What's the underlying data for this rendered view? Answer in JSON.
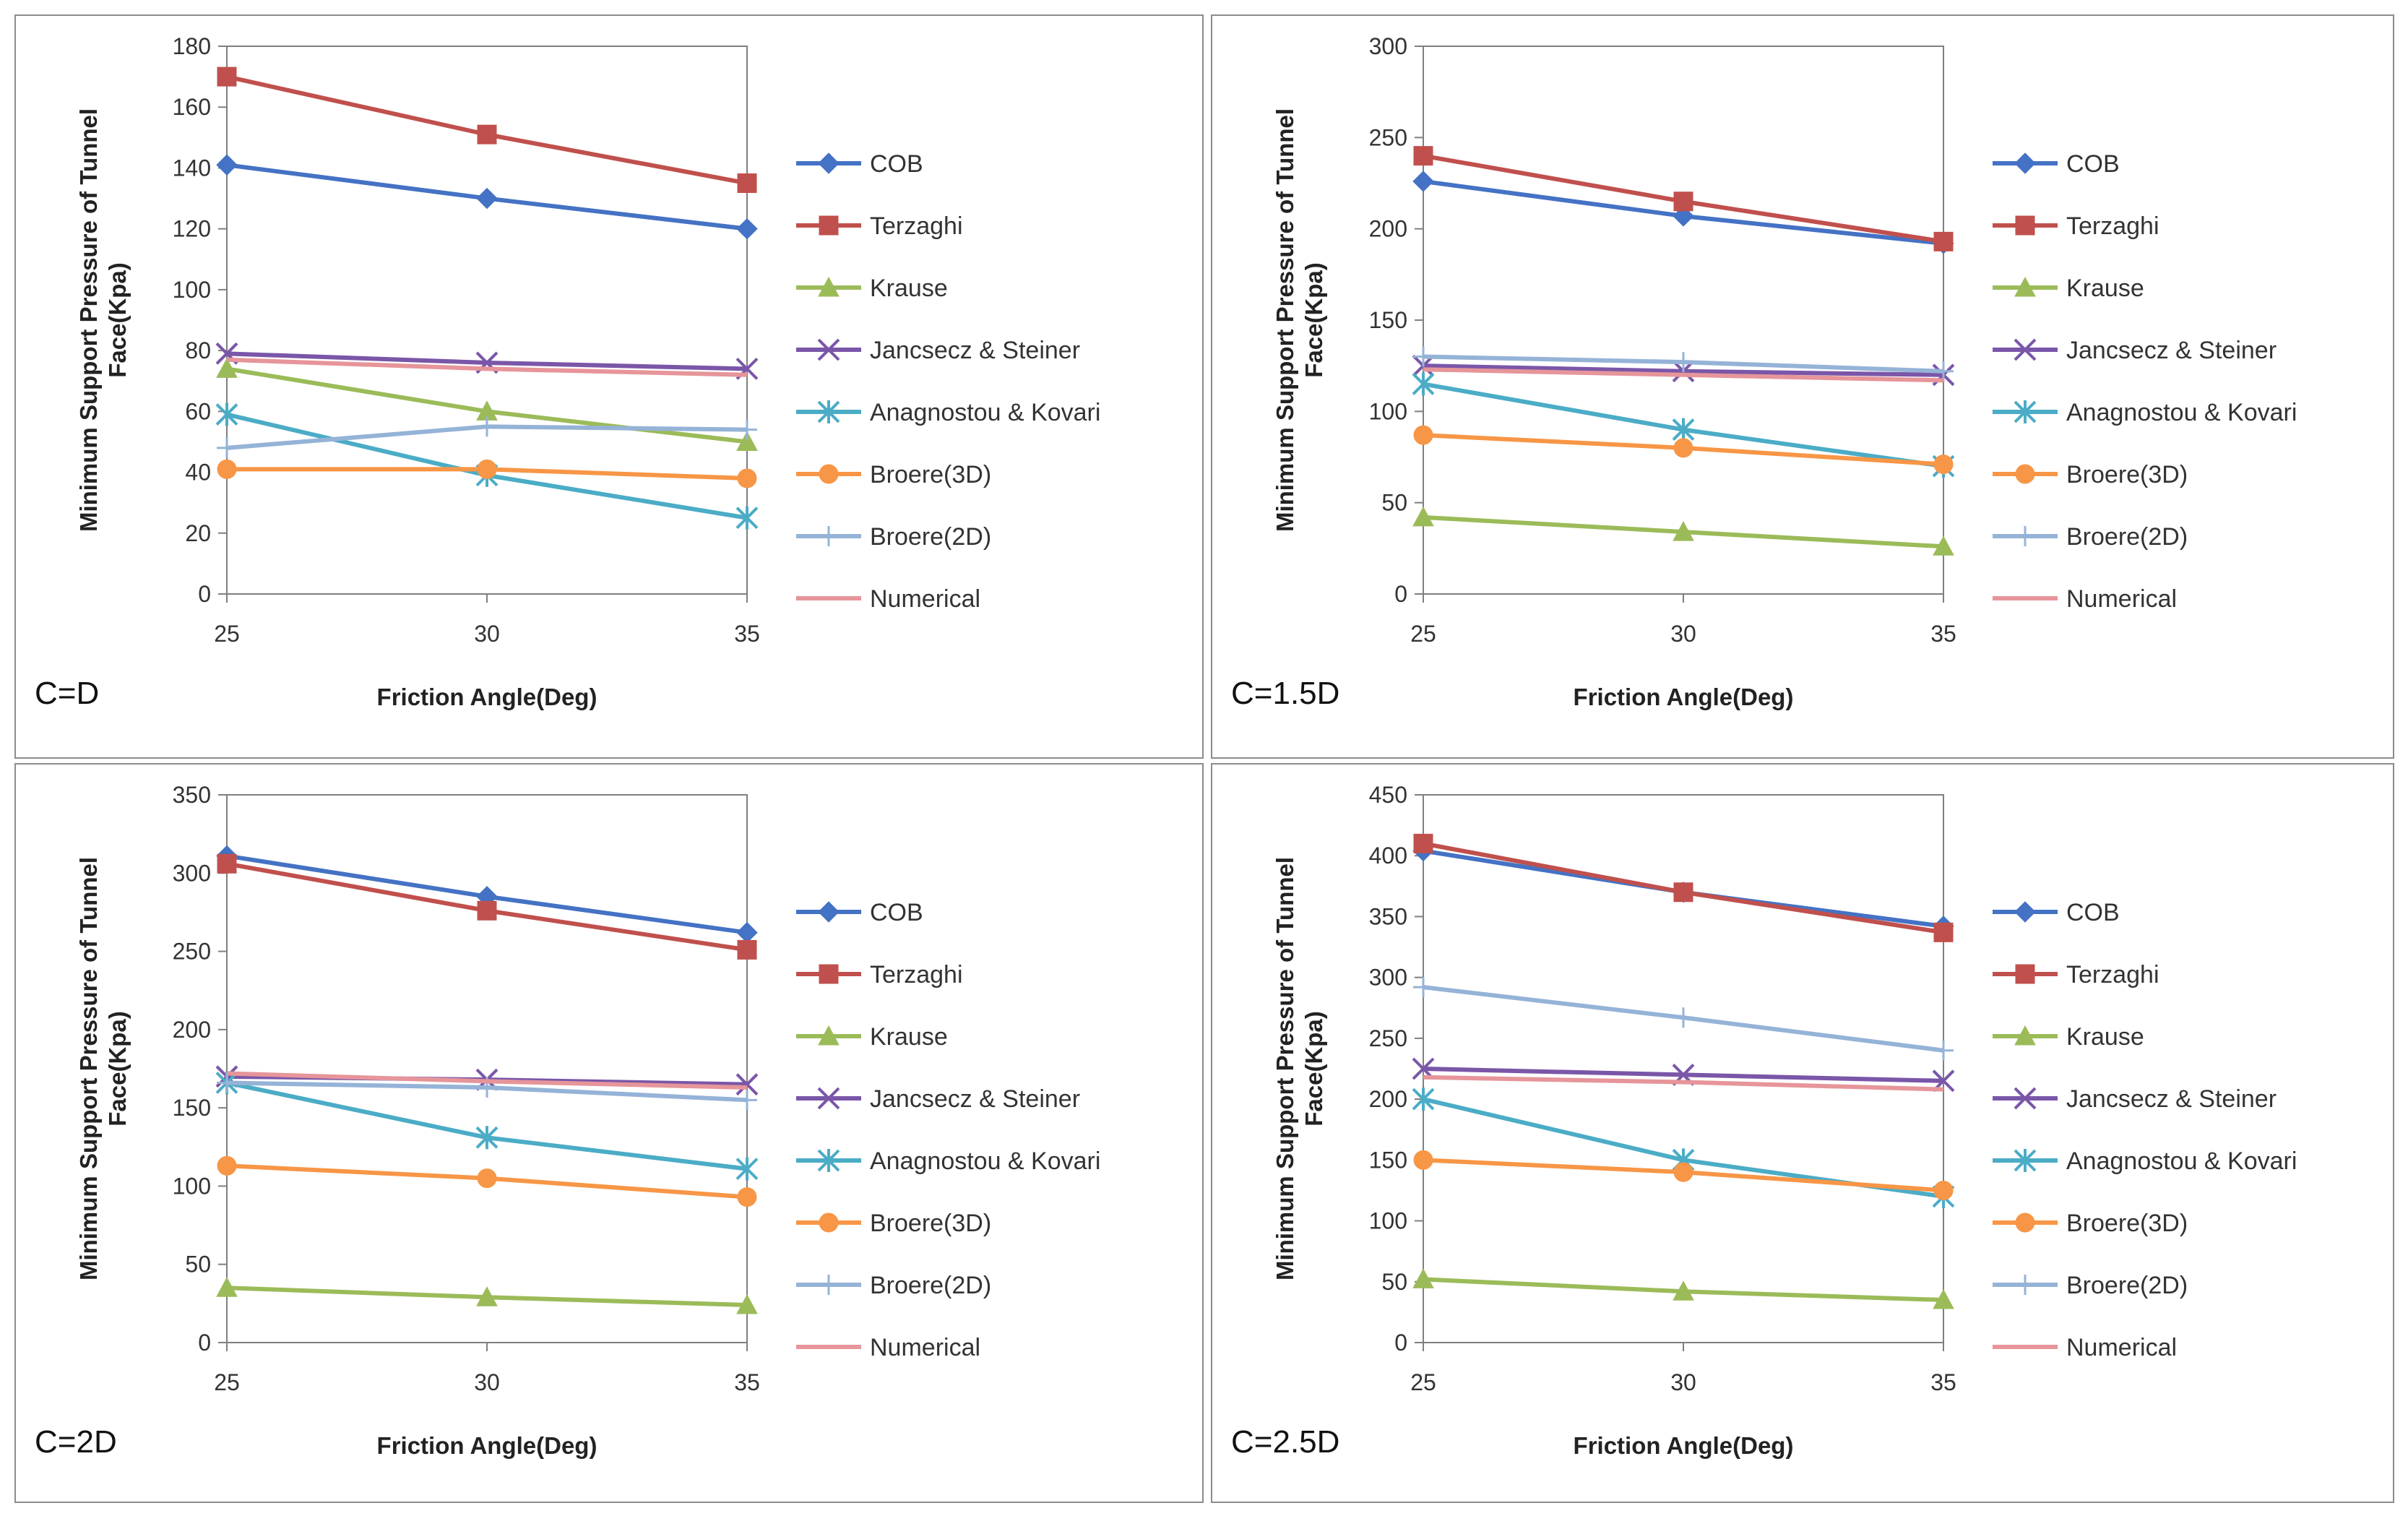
{
  "figure_title": "",
  "chart_data": [
    {
      "type": "line",
      "panel_label": "C=D",
      "xlabel": "Friction Angle(Deg)",
      "ylabel": "Minimum Support Pressure of Tunnel Face(Kpa)",
      "x": [
        25,
        30,
        35
      ],
      "xlim": [
        25,
        35
      ],
      "ylim": [
        0,
        180
      ],
      "yticks": [
        0,
        20,
        40,
        60,
        80,
        100,
        120,
        140,
        160,
        180
      ],
      "legend_position": "right",
      "series": [
        {
          "name": "COB",
          "color": "#4472c4",
          "marker": "diamond",
          "values": [
            141,
            130,
            120
          ]
        },
        {
          "name": "Terzaghi",
          "color": "#c0504d",
          "marker": "square",
          "values": [
            170,
            151,
            135
          ]
        },
        {
          "name": "Krause",
          "color": "#9bbb59",
          "marker": "triangle",
          "values": [
            74,
            60,
            50
          ]
        },
        {
          "name": "Jancsecz & Steiner",
          "color": "#7a56a8",
          "marker": "x",
          "values": [
            79,
            76,
            74
          ]
        },
        {
          "name": "Anagnostou & Kovari",
          "color": "#4bacc6",
          "marker": "star",
          "values": [
            59,
            39,
            25
          ]
        },
        {
          "name": "Broere(3D)",
          "color": "#f79646",
          "marker": "circle",
          "values": [
            41,
            41,
            38
          ]
        },
        {
          "name": "Broere(2D)",
          "color": "#95b3d7",
          "marker": "plus",
          "values": [
            48,
            55,
            54
          ]
        },
        {
          "name": "Numerical",
          "color": "#e6959a",
          "marker": "none",
          "values": [
            77,
            74,
            72
          ]
        }
      ]
    },
    {
      "type": "line",
      "panel_label": "C=1.5D",
      "xlabel": "Friction Angle(Deg)",
      "ylabel": "Minimum Support Pressure of Tunnel Face(Kpa)",
      "x": [
        25,
        30,
        35
      ],
      "xlim": [
        25,
        35
      ],
      "ylim": [
        0,
        300
      ],
      "yticks": [
        0,
        50,
        100,
        150,
        200,
        250,
        300
      ],
      "legend_position": "right",
      "series": [
        {
          "name": "COB",
          "color": "#4472c4",
          "marker": "diamond",
          "values": [
            226,
            207,
            192
          ]
        },
        {
          "name": "Terzaghi",
          "color": "#c0504d",
          "marker": "square",
          "values": [
            240,
            215,
            193
          ]
        },
        {
          "name": "Krause",
          "color": "#9bbb59",
          "marker": "triangle",
          "values": [
            42,
            34,
            26
          ]
        },
        {
          "name": "Jancsecz & Steiner",
          "color": "#7a56a8",
          "marker": "x",
          "values": [
            125,
            122,
            120
          ]
        },
        {
          "name": "Anagnostou & Kovari",
          "color": "#4bacc6",
          "marker": "star",
          "values": [
            115,
            90,
            70
          ]
        },
        {
          "name": "Broere(3D)",
          "color": "#f79646",
          "marker": "circle",
          "values": [
            87,
            80,
            71
          ]
        },
        {
          "name": "Broere(2D)",
          "color": "#95b3d7",
          "marker": "plus",
          "values": [
            130,
            127,
            122
          ]
        },
        {
          "name": "Numerical",
          "color": "#e6959a",
          "marker": "none",
          "values": [
            123,
            120,
            117
          ]
        }
      ]
    },
    {
      "type": "line",
      "panel_label": "C=2D",
      "xlabel": "Friction Angle(Deg)",
      "ylabel": "Minimum Support Pressure of Tunnel Face(Kpa)",
      "x": [
        25,
        30,
        35
      ],
      "xlim": [
        25,
        35
      ],
      "ylim": [
        0,
        350
      ],
      "yticks": [
        0,
        50,
        100,
        150,
        200,
        250,
        300,
        350
      ],
      "legend_position": "right",
      "series": [
        {
          "name": "COB",
          "color": "#4472c4",
          "marker": "diamond",
          "values": [
            311,
            285,
            262
          ]
        },
        {
          "name": "Terzaghi",
          "color": "#c0504d",
          "marker": "square",
          "values": [
            306,
            276,
            251
          ]
        },
        {
          "name": "Krause",
          "color": "#9bbb59",
          "marker": "triangle",
          "values": [
            35,
            29,
            24
          ]
        },
        {
          "name": "Jancsecz & Steiner",
          "color": "#7a56a8",
          "marker": "x",
          "values": [
            170,
            168,
            165
          ]
        },
        {
          "name": "Anagnostou & Kovari",
          "color": "#4bacc6",
          "marker": "star",
          "values": [
            166,
            131,
            111
          ]
        },
        {
          "name": "Broere(3D)",
          "color": "#f79646",
          "marker": "circle",
          "values": [
            113,
            105,
            93
          ]
        },
        {
          "name": "Broere(2D)",
          "color": "#95b3d7",
          "marker": "plus",
          "values": [
            166,
            163,
            155
          ]
        },
        {
          "name": "Numerical",
          "color": "#e6959a",
          "marker": "none",
          "values": [
            172,
            167,
            163
          ]
        }
      ]
    },
    {
      "type": "line",
      "panel_label": "C=2.5D",
      "xlabel": "Friction Angle(Deg)",
      "ylabel": "Minimum Support Pressure of Tunnel Face(Kpa)",
      "x": [
        25,
        30,
        35
      ],
      "xlim": [
        25,
        35
      ],
      "ylim": [
        0,
        450
      ],
      "yticks": [
        0,
        50,
        100,
        150,
        200,
        250,
        300,
        350,
        400,
        450
      ],
      "legend_position": "right",
      "series": [
        {
          "name": "COB",
          "color": "#4472c4",
          "marker": "diamond",
          "values": [
            404,
            370,
            342
          ]
        },
        {
          "name": "Terzaghi",
          "color": "#c0504d",
          "marker": "square",
          "values": [
            410,
            370,
            337
          ]
        },
        {
          "name": "Krause",
          "color": "#9bbb59",
          "marker": "triangle",
          "values": [
            52,
            42,
            35
          ]
        },
        {
          "name": "Jancsecz & Steiner",
          "color": "#7a56a8",
          "marker": "x",
          "values": [
            225,
            220,
            215
          ]
        },
        {
          "name": "Anagnostou & Kovari",
          "color": "#4bacc6",
          "marker": "star",
          "values": [
            200,
            150,
            120
          ]
        },
        {
          "name": "Broere(3D)",
          "color": "#f79646",
          "marker": "circle",
          "values": [
            150,
            140,
            125
          ]
        },
        {
          "name": "Broere(2D)",
          "color": "#95b3d7",
          "marker": "plus",
          "values": [
            292,
            267,
            240
          ]
        },
        {
          "name": "Numerical",
          "color": "#e6959a",
          "marker": "none",
          "values": [
            218,
            214,
            208
          ]
        }
      ]
    }
  ]
}
